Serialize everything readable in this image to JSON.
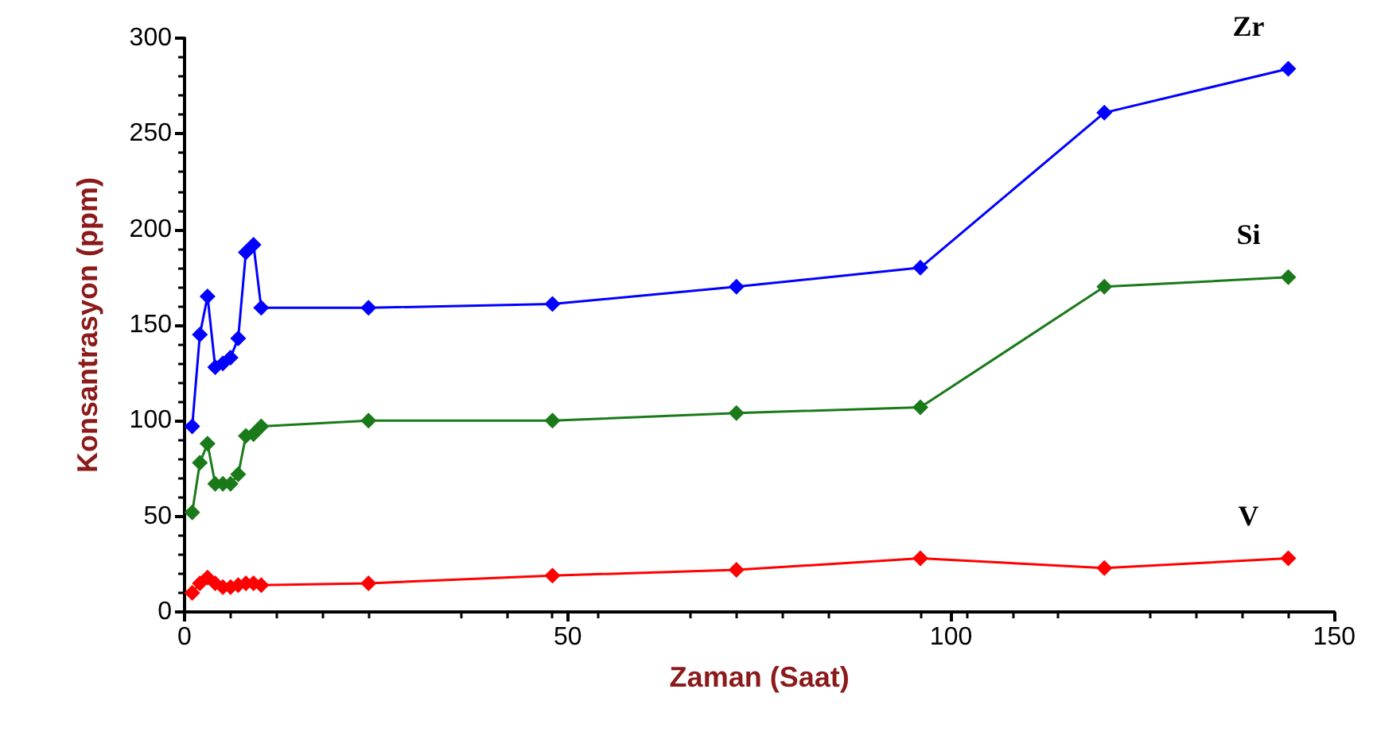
{
  "chart_data": {
    "type": "line",
    "xlabel": "Zaman (Saat)",
    "ylabel": "Konsantrasyon (ppm)",
    "x": [
      1,
      2,
      3,
      4,
      5,
      6,
      7,
      8,
      9,
      10,
      24,
      48,
      72,
      96,
      120,
      144
    ],
    "series": [
      {
        "name": "Zr",
        "color": "#0000ff",
        "values": [
          97,
          145,
          165,
          128,
          130,
          133,
          143,
          188,
          192,
          159,
          159,
          161,
          170,
          180,
          261,
          284
        ]
      },
      {
        "name": "Si",
        "color": "#1a7a1a",
        "values": [
          52,
          78,
          88,
          67,
          67,
          67,
          72,
          92,
          93,
          97,
          100,
          100,
          104,
          107,
          170,
          175
        ]
      },
      {
        "name": "V",
        "color": "#ff0000",
        "values": [
          10,
          15,
          18,
          15,
          13,
          13,
          14,
          15,
          15,
          14,
          15,
          19,
          22,
          28,
          23,
          28
        ]
      }
    ],
    "xlim": [
      0,
      150
    ],
    "xticks": [
      0,
      50,
      100,
      150
    ],
    "ylim": [
      0,
      300
    ],
    "yticks": [
      0,
      50,
      100,
      150,
      200,
      250,
      300
    ],
    "marker": "diamond",
    "line_style": "solid",
    "grid": false,
    "legend": false
  }
}
